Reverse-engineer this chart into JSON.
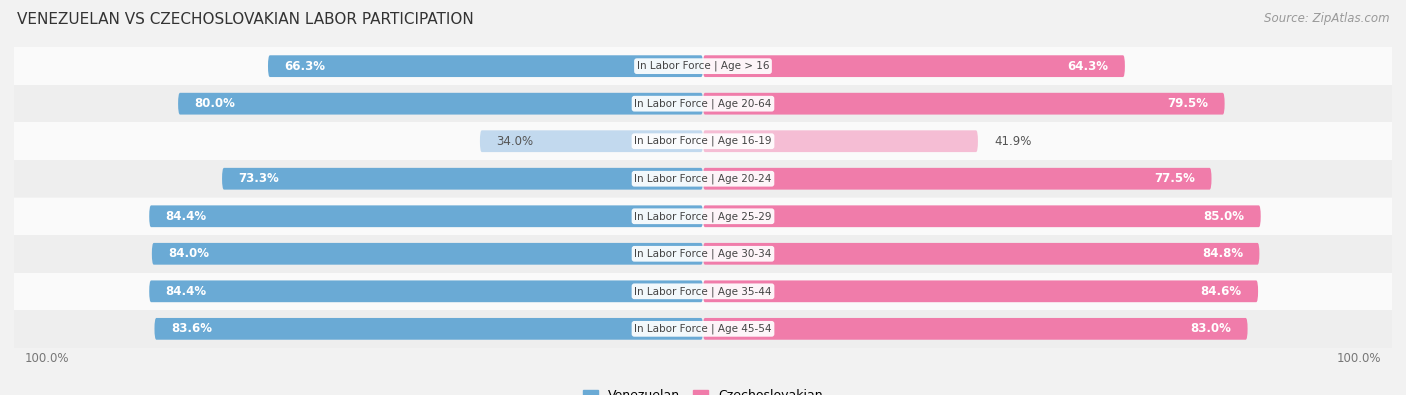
{
  "title": "VENEZUELAN VS CZECHOSLOVAKIAN LABOR PARTICIPATION",
  "source": "Source: ZipAtlas.com",
  "categories": [
    "In Labor Force | Age > 16",
    "In Labor Force | Age 20-64",
    "In Labor Force | Age 16-19",
    "In Labor Force | Age 20-24",
    "In Labor Force | Age 25-29",
    "In Labor Force | Age 30-34",
    "In Labor Force | Age 35-44",
    "In Labor Force | Age 45-54"
  ],
  "venezuelan": [
    66.3,
    80.0,
    34.0,
    73.3,
    84.4,
    84.0,
    84.4,
    83.6
  ],
  "czechoslovakian": [
    64.3,
    79.5,
    41.9,
    77.5,
    85.0,
    84.8,
    84.6,
    83.0
  ],
  "ven_color_full": "#6aaad5",
  "ven_color_light": "#c2d9ee",
  "czk_color_full": "#f07caa",
  "czk_color_light": "#f5bdd4",
  "bar_height": 0.58,
  "bg_color": "#f2f2f2",
  "row_bg_even": "#fafafa",
  "row_bg_odd": "#eeeeee",
  "label_fontsize": 8.5,
  "title_fontsize": 11,
  "source_fontsize": 8.5
}
